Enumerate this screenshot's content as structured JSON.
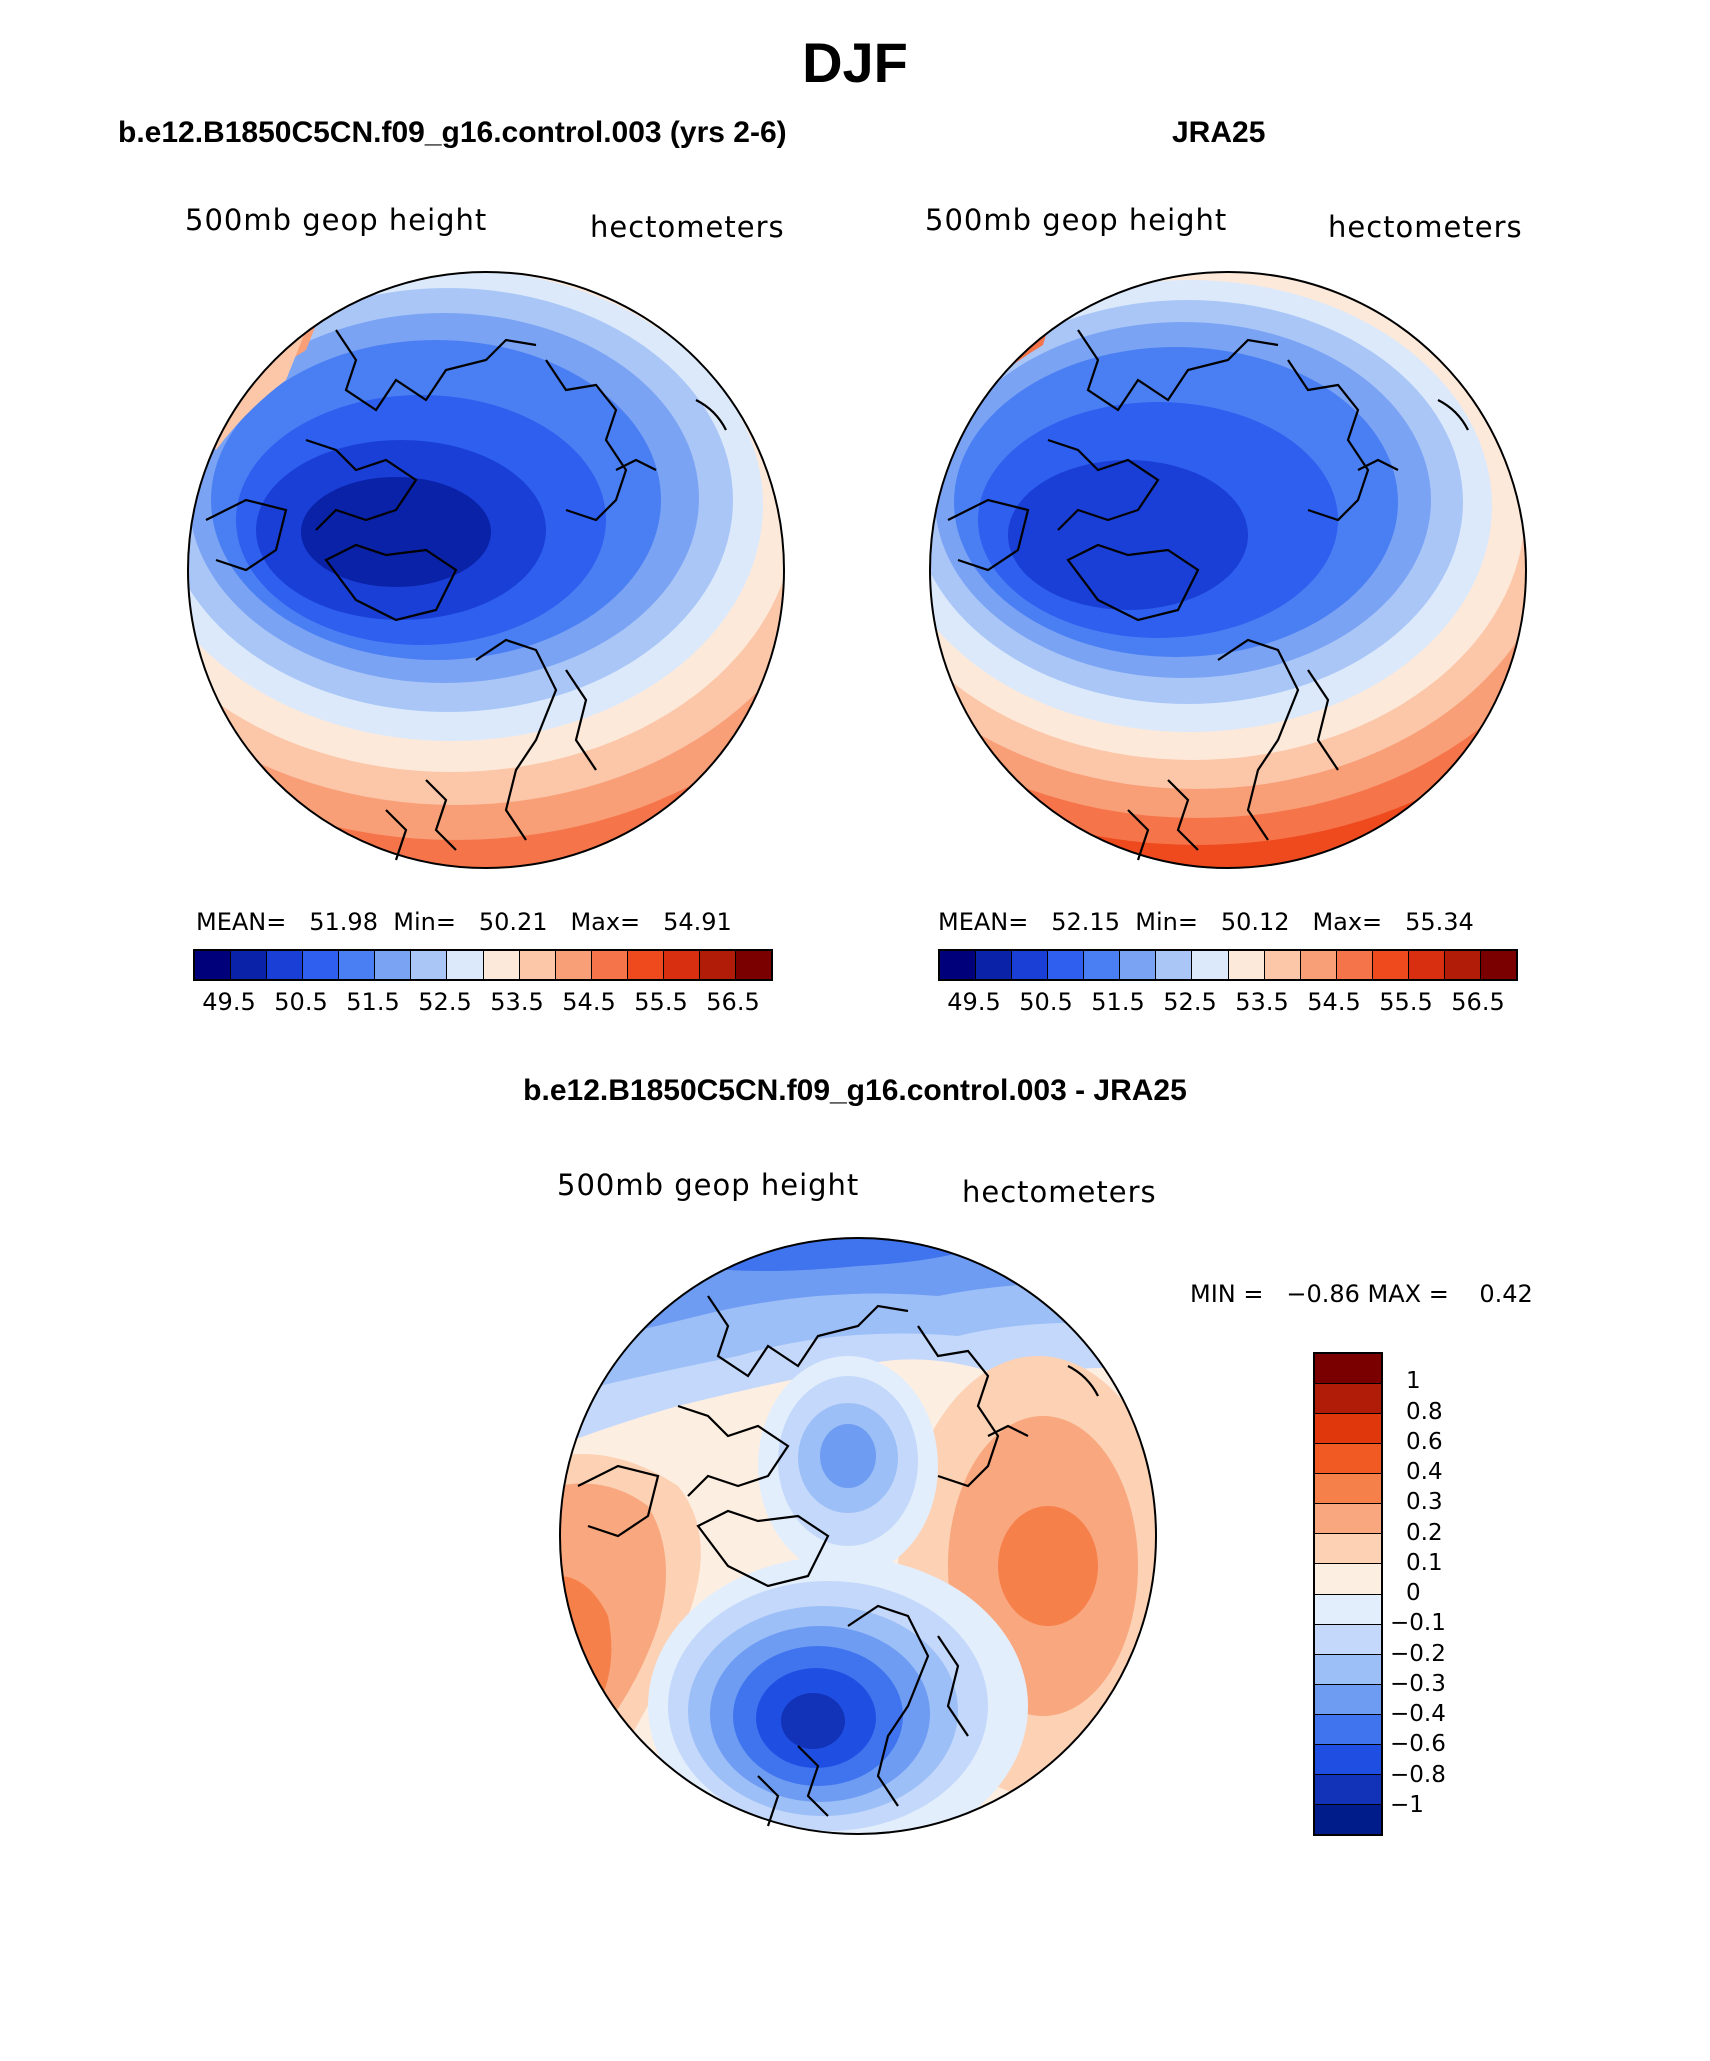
{
  "figure_title": "DJF",
  "panels": [
    {
      "title": "b.e12.B1850C5CN.f09_g16.control.003 (yrs 2-6)",
      "variable": "500mb geop height",
      "units": "hectometers",
      "mean_label": "MEAN=",
      "mean": "51.98",
      "min_label": "Min=",
      "min": "50.21",
      "max_label": "Max=",
      "max": "54.91"
    },
    {
      "title": "JRA25",
      "variable": "500mb geop height",
      "units": "hectometers",
      "mean_label": "MEAN=",
      "mean": "52.15",
      "min_label": "Min=",
      "min": "50.12",
      "max_label": "Max=",
      "max": "55.34"
    }
  ],
  "diff_panel": {
    "title": "b.e12.B1850C5CN.f09_g16.control.003 - JRA25",
    "variable": "500mb geop height",
    "units": "hectometers",
    "minmax": "MIN =   −0.86 MAX =    0.42"
  },
  "colorbar_main": {
    "colors": [
      "#00007a",
      "#0a22a8",
      "#1a3fd6",
      "#2e5fef",
      "#4a7ff4",
      "#7ba3f4",
      "#a9c6f7",
      "#dbe9fb",
      "#fde9da",
      "#fbc7a8",
      "#f89f78",
      "#f6744a",
      "#ee4a1e",
      "#d82f10",
      "#b01c08",
      "#7a0000"
    ],
    "labels": [
      "49.5",
      "50.5",
      "51.5",
      "52.5",
      "53.5",
      "54.5",
      "55.5",
      "56.5"
    ]
  },
  "colorbar_diff": {
    "colors": [
      "#7a0000",
      "#b01c08",
      "#e0380c",
      "#f25a24",
      "#f6804a",
      "#f9a77e",
      "#fcd1b4",
      "#fdeee2",
      "#e3eefc",
      "#c3d8fa",
      "#9dbff7",
      "#6e9cf3",
      "#3f74ee",
      "#1f4fe2",
      "#1232b8",
      "#001b8a"
    ],
    "labels": [
      "1",
      "0.8",
      "0.6",
      "0.4",
      "0.3",
      "0.2",
      "0.1",
      "0",
      "−0.1",
      "−0.2",
      "−0.3",
      "−0.4",
      "−0.6",
      "−0.8",
      "−1"
    ]
  }
}
